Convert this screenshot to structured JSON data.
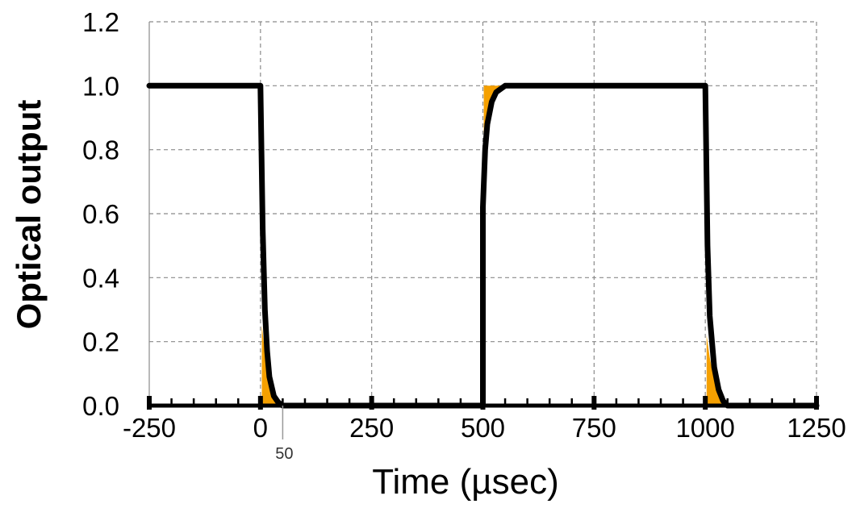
{
  "chart_data": {
    "type": "line",
    "xlabel": "Time (µsec)",
    "ylabel": "Optical output",
    "xlim": [
      -250,
      1250
    ],
    "ylim": [
      0,
      1.2
    ],
    "x_ticks": [
      -250,
      0,
      250,
      500,
      750,
      1000,
      1250
    ],
    "x_tick_labels": [
      "-250",
      "0",
      "250",
      "500",
      "750",
      "1000",
      "1250"
    ],
    "y_ticks": [
      0.0,
      0.2,
      0.4,
      0.6,
      0.8,
      1.0,
      1.2
    ],
    "y_tick_labels": [
      "0.0",
      "0.2",
      "0.4",
      "0.6",
      "0.8",
      "1.0",
      "1.2"
    ],
    "x_minor_step": 50,
    "grid": true,
    "series": [
      {
        "color": "#000000",
        "points": [
          [
            -250,
            1.0
          ],
          [
            0,
            1.0
          ],
          [
            5,
            0.55
          ],
          [
            10,
            0.3
          ],
          [
            15,
            0.17
          ],
          [
            20,
            0.09
          ],
          [
            30,
            0.03
          ],
          [
            40,
            0.01
          ],
          [
            50,
            0.0
          ],
          [
            500,
            0.0
          ],
          [
            500,
            0.62
          ],
          [
            505,
            0.8
          ],
          [
            510,
            0.88
          ],
          [
            520,
            0.95
          ],
          [
            530,
            0.98
          ],
          [
            550,
            1.0
          ],
          [
            1000,
            1.0
          ],
          [
            1005,
            0.5
          ],
          [
            1010,
            0.28
          ],
          [
            1020,
            0.12
          ],
          [
            1030,
            0.05
          ],
          [
            1040,
            0.015
          ],
          [
            1050,
            0.0
          ],
          [
            1250,
            0.0
          ]
        ]
      }
    ],
    "highlight_color": "#f5a000",
    "highlights": [
      {
        "points": [
          [
            3,
            0.0
          ],
          [
            3,
            0.25
          ],
          [
            10,
            0.17
          ],
          [
            20,
            0.09
          ],
          [
            30,
            0.03
          ],
          [
            40,
            0.01
          ],
          [
            50,
            0.0
          ]
        ]
      },
      {
        "points": [
          [
            502,
            0.8
          ],
          [
            502,
            1.0
          ],
          [
            550,
            1.0
          ],
          [
            530,
            0.98
          ],
          [
            520,
            0.95
          ],
          [
            510,
            0.88
          ],
          [
            505,
            0.8
          ]
        ]
      },
      {
        "points": [
          [
            1003,
            0.0
          ],
          [
            1003,
            0.22
          ],
          [
            1010,
            0.15
          ],
          [
            1020,
            0.08
          ],
          [
            1030,
            0.04
          ],
          [
            1040,
            0.015
          ],
          [
            1050,
            0.0
          ]
        ]
      }
    ],
    "annotations": [
      {
        "text": "50",
        "x": 50
      }
    ]
  }
}
